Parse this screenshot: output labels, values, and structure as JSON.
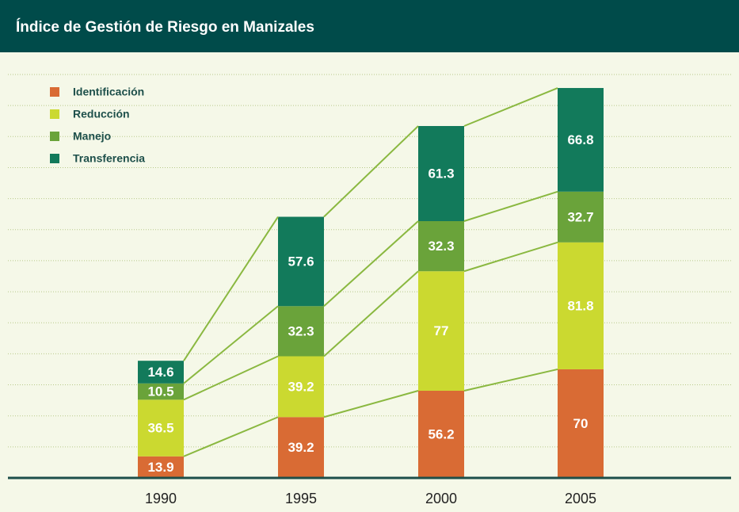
{
  "chart_data": {
    "type": "stacked_bar",
    "title": "Índice de Gestión de Riesgo en Manizales",
    "categories": [
      "1990",
      "1995",
      "2000",
      "2005"
    ],
    "series": [
      {
        "name": "Identificación",
        "color": "#d96b34",
        "values": [
          13.9,
          39.2,
          56.2,
          70
        ]
      },
      {
        "name": "Reducción",
        "color": "#cbd930",
        "values": [
          36.5,
          39.2,
          77,
          81.8
        ]
      },
      {
        "name": "Manejo",
        "color": "#6aa33a",
        "values": [
          10.5,
          32.3,
          32.3,
          32.7
        ]
      },
      {
        "name": "Transferencia",
        "color": "#127a5b",
        "values": [
          14.6,
          57.6,
          61.3,
          66.8
        ]
      }
    ],
    "ylim": [
      0,
      260
    ],
    "yticks": [
      20,
      40,
      60,
      80,
      100,
      120,
      140,
      160,
      180,
      200,
      220,
      240,
      260
    ],
    "grid": true,
    "legend": "top-left"
  }
}
